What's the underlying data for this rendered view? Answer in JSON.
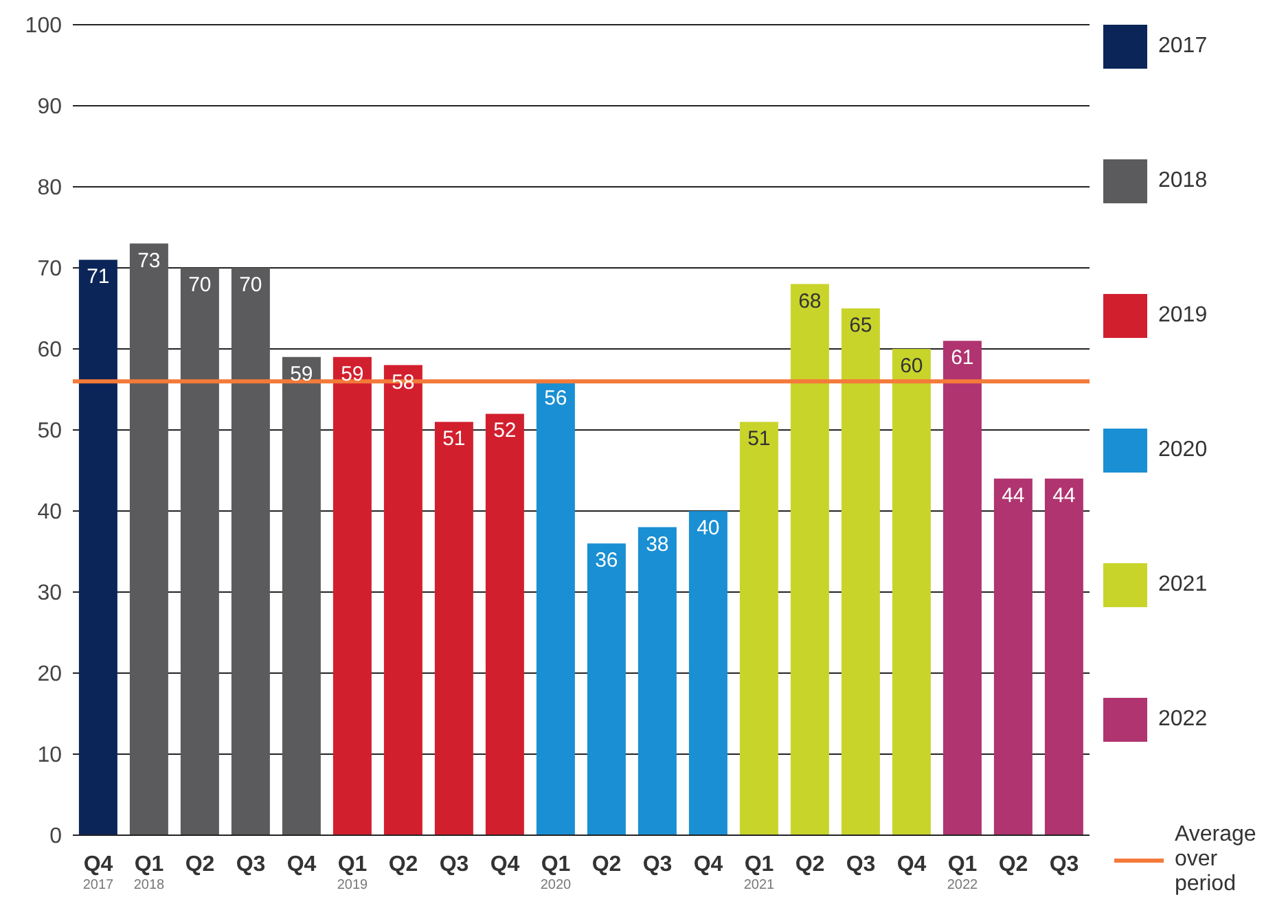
{
  "chart_data": {
    "type": "bar",
    "stacked": true,
    "categories": [
      "Q4$_{2017}$",
      "Q1$_{2018}$",
      "Q2",
      "Q3",
      "Q4",
      "Q1$_{2019}$",
      "Q2",
      "Q3",
      "Q4",
      "Q1$_{2020}$",
      "Q2",
      "Q3",
      "Q4",
      "Q1$_{2021}$",
      "Q2",
      "Q3",
      "Q4",
      "Q1$_{2022}$",
      "Q2",
      "Q3"
    ],
    "series": [
      {
        "name": "2017",
        "color": "#0b2559",
        "values": [
          71,
          null,
          null,
          null,
          null,
          null,
          null,
          null,
          null,
          null,
          null,
          null,
          null,
          null,
          null,
          null,
          null,
          null,
          null,
          null
        ]
      },
      {
        "name": "2018",
        "color": "#5b5b5d",
        "values": [
          null,
          73,
          70,
          70,
          59,
          null,
          null,
          null,
          null,
          null,
          null,
          null,
          null,
          null,
          null,
          null,
          null,
          null,
          null,
          null
        ]
      },
      {
        "name": "2019",
        "color": "#d21f2e",
        "values": [
          null,
          null,
          null,
          null,
          null,
          59,
          58,
          51,
          52,
          null,
          null,
          null,
          null,
          null,
          null,
          null,
          null,
          null,
          null,
          null
        ]
      },
      {
        "name": "2020",
        "color": "#1a8fd3",
        "values": [
          null,
          null,
          null,
          null,
          null,
          null,
          null,
          null,
          null,
          56,
          36,
          38,
          40,
          null,
          null,
          null,
          null,
          null,
          null,
          null
        ]
      },
      {
        "name": "2021",
        "color": "#c9d42b",
        "values": [
          null,
          null,
          null,
          null,
          null,
          null,
          null,
          null,
          null,
          null,
          null,
          null,
          null,
          51,
          68,
          65,
          60,
          null,
          null,
          null
        ]
      },
      {
        "name": "2022",
        "color": "#b03470",
        "values": [
          null,
          null,
          null,
          null,
          null,
          null,
          null,
          null,
          null,
          null,
          null,
          null,
          null,
          null,
          null,
          null,
          null,
          61,
          44,
          44
        ]
      }
    ],
    "ylim": [
      0,
      100
    ],
    "yticks": [
      0,
      10,
      20,
      30,
      40,
      50,
      60,
      70,
      80,
      90,
      100
    ],
    "grid": "y",
    "data_labels": true,
    "legend": "right",
    "ref_lines": [
      {
        "axis": "y",
        "value": 56,
        "label": "Average over period",
        "color": "#f47a3a"
      }
    ]
  }
}
